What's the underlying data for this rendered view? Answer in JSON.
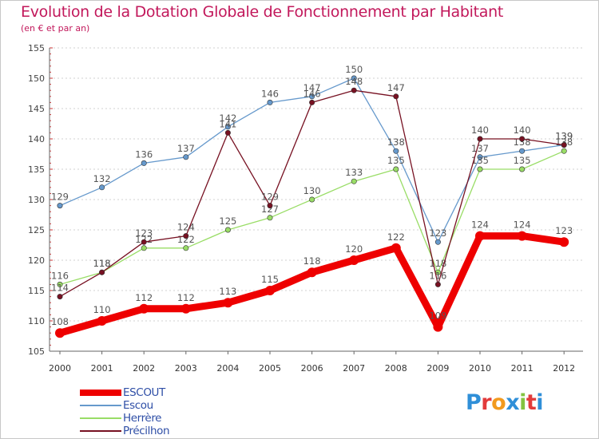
{
  "title": "Evolution de la Dotation Globale de Fonctionnement par Habitant",
  "subtitle": "(en € et par an)",
  "logo_text": "Proxiti",
  "chart_data": {
    "type": "line",
    "title": "Evolution de la Dotation Globale de Fonctionnement par Habitant",
    "subtitle": "(en € et par an)",
    "xlabel": "",
    "ylabel": "",
    "x": [
      "2000",
      "2001",
      "2002",
      "2003",
      "2004",
      "2005",
      "2006",
      "2007",
      "2008",
      "2009",
      "2010",
      "2011",
      "2012"
    ],
    "ylim": [
      105,
      155
    ],
    "yticks": [
      "105",
      "110",
      "115",
      "120",
      "125",
      "130",
      "135",
      "140",
      "145",
      "150",
      "155"
    ],
    "grid": "horizontal dashed",
    "legend": "bottom-left",
    "series": [
      {
        "name": "ESCOUT",
        "color": "#ee0000",
        "values": [
          108,
          110,
          112,
          112,
          113,
          115,
          118,
          120,
          122,
          109,
          124,
          124,
          123
        ],
        "labels": [
          "108",
          "110",
          "112",
          "112",
          "113",
          "115",
          "118",
          "120",
          "122",
          "109",
          "124",
          "124",
          "123"
        ]
      },
      {
        "name": "Escou",
        "color": "#6699cc",
        "values": [
          129,
          132,
          136,
          137,
          142,
          146,
          147,
          150,
          138,
          123,
          137,
          138,
          139
        ],
        "labels": [
          "129",
          "132",
          "136",
          "137",
          "142",
          "146",
          "147",
          "150",
          "138",
          "123",
          "137",
          "138",
          "139"
        ]
      },
      {
        "name": "Herrère",
        "color": "#99dd66",
        "values": [
          116,
          118,
          122,
          122,
          125,
          127,
          130,
          133,
          135,
          118,
          135,
          135,
          138
        ],
        "labels": [
          "116",
          "118",
          "122",
          "122",
          "125",
          "127",
          "130",
          "133",
          "135",
          "118",
          "135",
          "135",
          "138"
        ]
      },
      {
        "name": "Précilhon",
        "color": "#771122",
        "values": [
          114,
          118,
          123,
          124,
          141,
          129,
          146,
          148,
          147,
          116,
          140,
          140,
          139
        ],
        "labels": [
          "114",
          "118",
          "123",
          "124",
          "141",
          "129",
          "146",
          "148",
          "147",
          "116",
          "140",
          "140",
          "139"
        ]
      }
    ]
  }
}
